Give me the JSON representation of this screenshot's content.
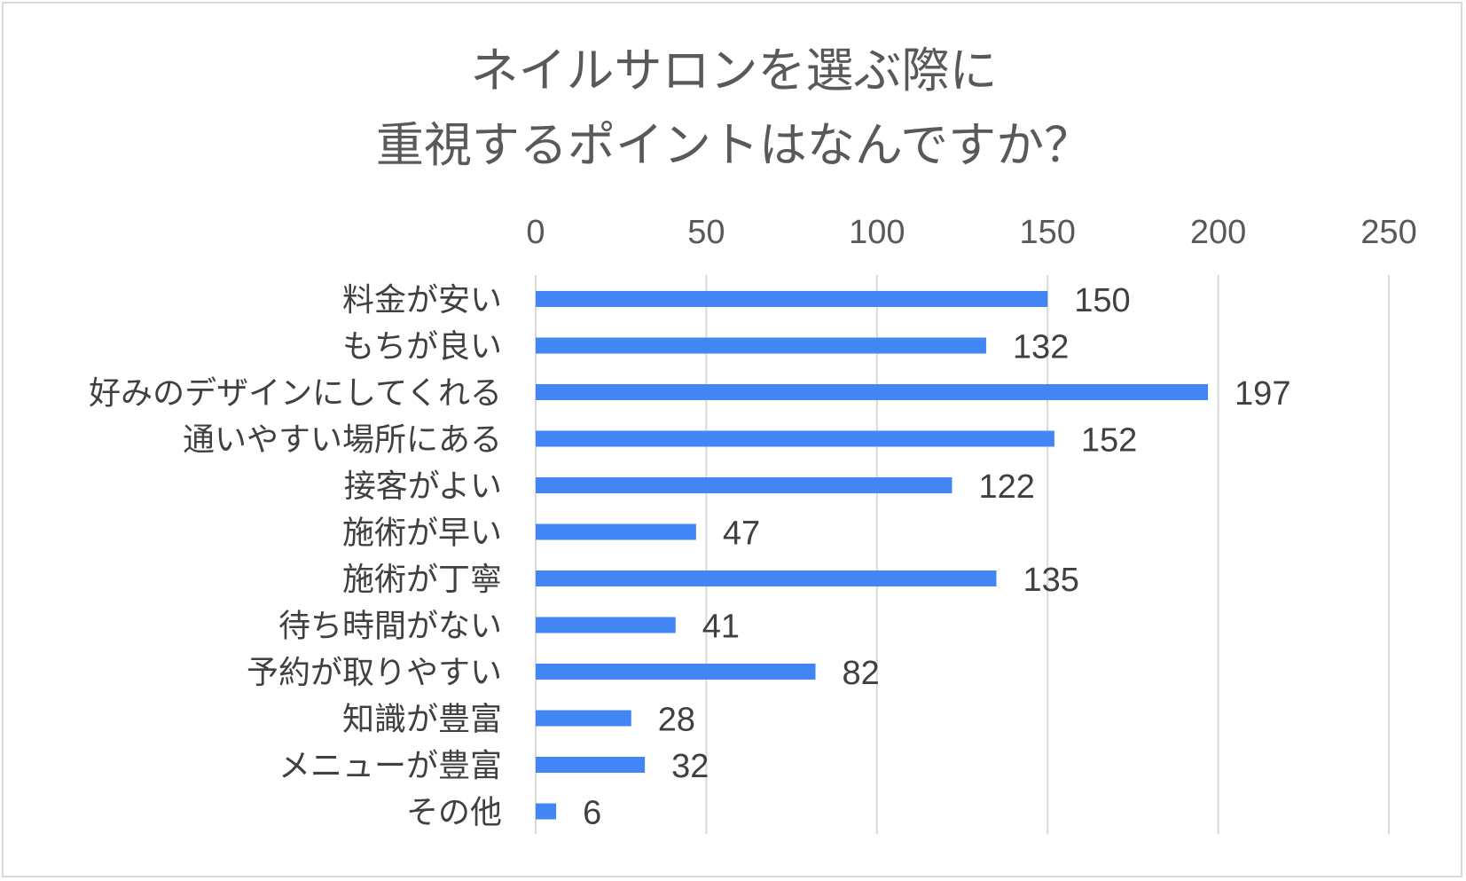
{
  "chart_data": {
    "type": "bar",
    "orientation": "horizontal",
    "title": "ネイルサロンを選ぶ際に\n重視するポイントはなんですか？",
    "categories": [
      "料金が安い",
      "もちが良い",
      "好みのデザインにしてくれる",
      "通いやすい場所にある",
      "接客がよい",
      "施術が早い",
      "施術が丁寧",
      "待ち時間がない",
      "予約が取りやすい",
      "知識が豊富",
      "メニューが豊富",
      "その他"
    ],
    "values": [
      150,
      132,
      197,
      152,
      122,
      47,
      135,
      41,
      82,
      28,
      32,
      6
    ],
    "xlim": [
      0,
      250
    ],
    "ticks": [
      "0",
      "50",
      "100",
      "150",
      "200",
      "250"
    ],
    "axis_position": "top",
    "grid": true,
    "legend": "none",
    "data_labels": true,
    "bar_color": "#4285f4",
    "grid_color": "#d9d9d9"
  }
}
